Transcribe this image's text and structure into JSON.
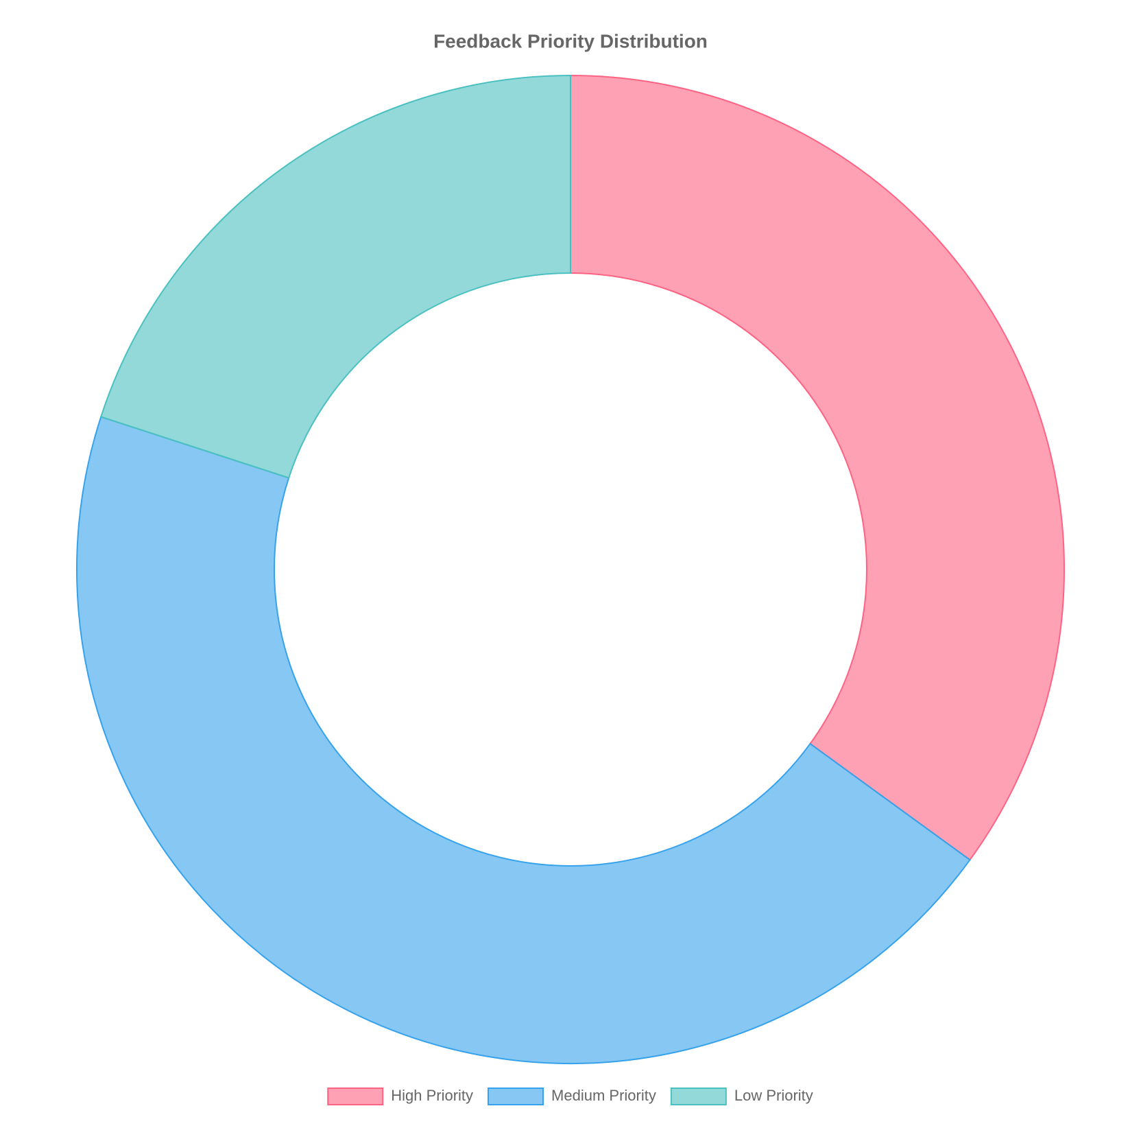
{
  "chart_data": {
    "type": "doughnut",
    "title": "Feedback Priority Distribution",
    "categories": [
      "High Priority",
      "Medium Priority",
      "Low Priority"
    ],
    "values": [
      35,
      45,
      20
    ],
    "colors": [
      "rgba(255,99,132,0.6)",
      "rgba(54,162,235,0.6)",
      "rgba(75,192,192,0.6)"
    ],
    "border_colors": [
      "#ff6384",
      "#36a2eb",
      "#4bc0c0"
    ],
    "legend": "bottom"
  }
}
